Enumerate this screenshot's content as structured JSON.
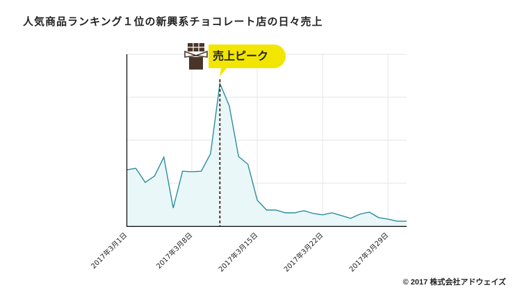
{
  "title": "人気商品ランキング１位の新興系チョコレート店の日々売上",
  "copyright": "© 2017 株式会社アドウェイズ",
  "annotation": {
    "label": "売上ピーク",
    "icon": "chocolate-bar-icon",
    "bubble_color": "#f2e600",
    "marker_date_index": 10
  },
  "colors": {
    "line": "#2a8c9c",
    "fill": "#e9f7f9",
    "grid": "#e6e6e6",
    "axis": "#000000",
    "marker": "#4a3428",
    "icon": "#4a3428"
  },
  "chart_data": {
    "type": "area",
    "title": "人気商品ランキング１位の新興系チョコレート店の日々売上",
    "xlabel": "",
    "ylabel": "",
    "x": [
      "2017年3月1日",
      "2017年3月2日",
      "2017年3月3日",
      "2017年3月4日",
      "2017年3月5日",
      "2017年3月6日",
      "2017年3月7日",
      "2017年3月8日",
      "2017年3月9日",
      "2017年3月10日",
      "2017年3月11日",
      "2017年3月12日",
      "2017年3月13日",
      "2017年3月14日",
      "2017年3月15日",
      "2017年3月16日",
      "2017年3月17日",
      "2017年3月18日",
      "2017年3月19日",
      "2017年3月20日",
      "2017年3月21日",
      "2017年3月22日",
      "2017年3月23日",
      "2017年3月24日",
      "2017年3月25日",
      "2017年3月26日",
      "2017年3月27日",
      "2017年3月28日",
      "2017年3月29日",
      "2017年3月30日",
      "2017年3月31日"
    ],
    "series": [
      {
        "name": "日々売上",
        "values": [
          32.7,
          33.6,
          25.4,
          29.1,
          40.1,
          10.5,
          31.9,
          31.6,
          31.9,
          42.1,
          83.0,
          70.0,
          40.5,
          36.0,
          15.0,
          9.3,
          9.3,
          7.7,
          7.7,
          8.9,
          7.3,
          6.5,
          7.7,
          6.1,
          4.5,
          6.9,
          8.1,
          4.9,
          4.0,
          2.8,
          2.8
        ]
      }
    ],
    "tick_labels": [
      "2017年3月1日",
      "2017年3月8日",
      "2017年3月15日",
      "2017年3月22日",
      "2017年3月29日"
    ],
    "tick_indices": [
      0,
      7,
      14,
      21,
      28
    ],
    "ylim": [
      0,
      100
    ],
    "y_gridlines": [
      25,
      50,
      75,
      100
    ],
    "y_tick_labels_visible": false,
    "grid": true,
    "legend": "none",
    "annotations": [
      {
        "text": "売上ピーク",
        "x": "2017年3月11日"
      }
    ]
  }
}
